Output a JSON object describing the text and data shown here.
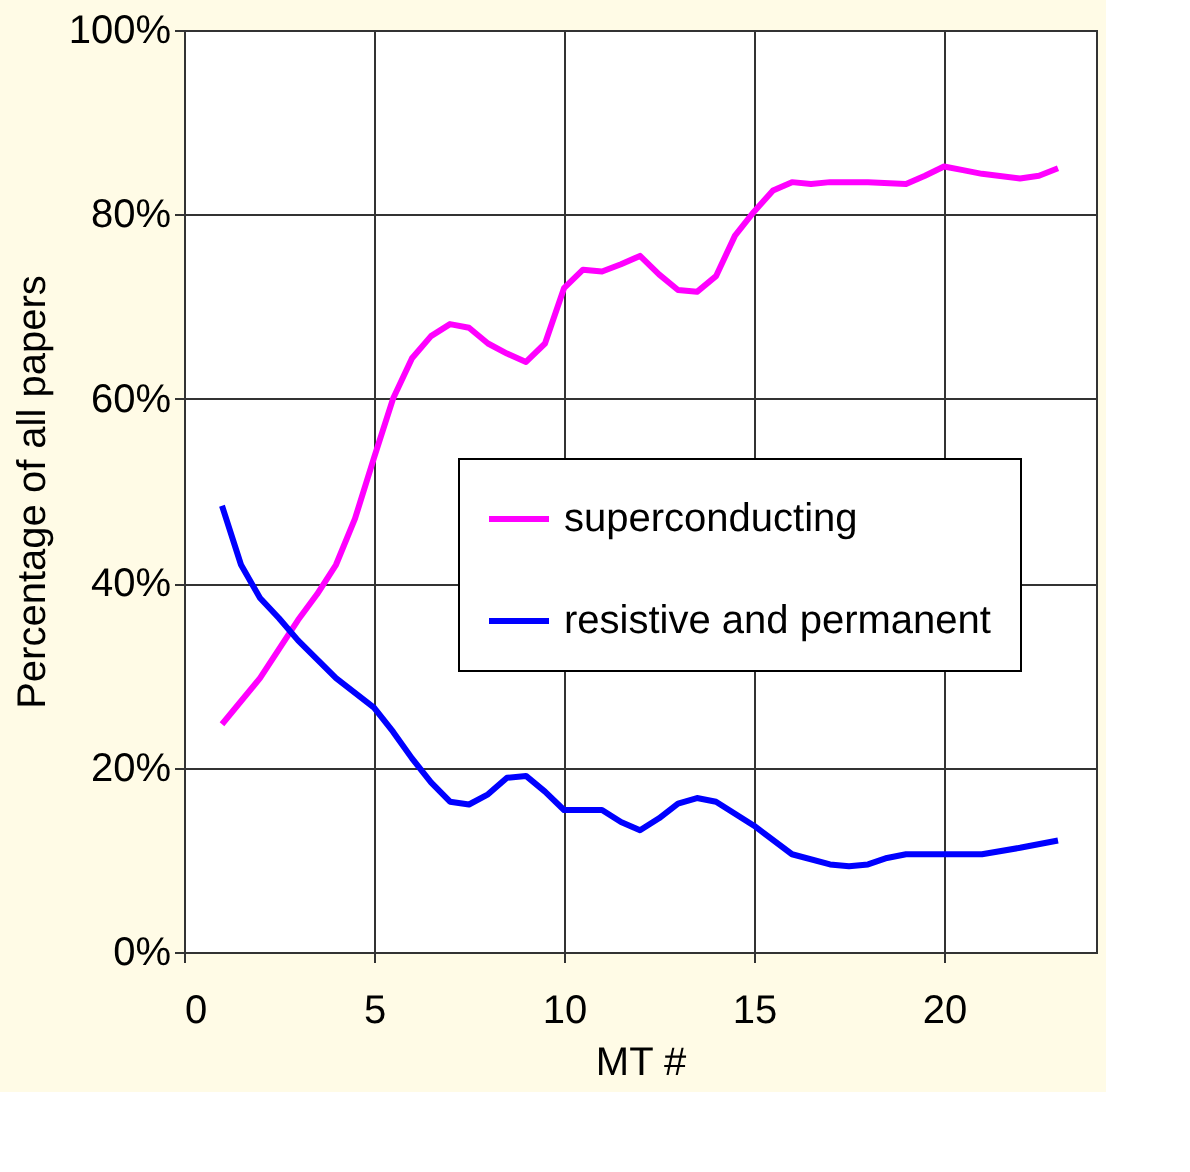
{
  "chart_data": {
    "type": "line",
    "xlabel": "MT #",
    "ylabel": "Percentage of all papers",
    "xlim": [
      0,
      24
    ],
    "xticks": [
      0,
      5,
      10,
      15,
      20
    ],
    "ylim": [
      0,
      100
    ],
    "yticks": [
      {
        "value": 0,
        "label": "0%"
      },
      {
        "value": 20,
        "label": "20%"
      },
      {
        "value": 40,
        "label": "40%"
      },
      {
        "value": 60,
        "label": "60%"
      },
      {
        "value": 80,
        "label": "80%"
      },
      {
        "value": 100,
        "label": "100%"
      }
    ],
    "grid": true,
    "legend": "right",
    "marker": "none",
    "line_style": "solid",
    "series": [
      {
        "name": "superconducting",
        "color": "#ff00ff",
        "x": [
          1,
          2,
          3,
          3.5,
          4,
          4.5,
          5,
          5.5,
          6,
          6.5,
          7,
          7.5,
          8,
          8.5,
          9,
          9.5,
          10,
          10.5,
          11,
          11.5,
          12,
          12.5,
          13,
          13.5,
          14,
          14.5,
          15,
          15.5,
          16,
          16.5,
          17,
          18,
          19,
          19.5,
          20,
          20.5,
          21,
          22,
          22.5,
          23
        ],
        "values": [
          24.7,
          29.7,
          36,
          38.8,
          42,
          47,
          53.6,
          60,
          64.4,
          66.8,
          68.1,
          67.7,
          66,
          64.9,
          64,
          66,
          72,
          74,
          73.8,
          74.6,
          75.5,
          73.5,
          71.8,
          71.6,
          73.3,
          77.7,
          80.3,
          82.6,
          83.5,
          83.3,
          83.5,
          83.5,
          83.3,
          84.2,
          85.2,
          84.8,
          84.4,
          83.9,
          84.2,
          85
        ]
      },
      {
        "name": "resistive and permanent",
        "color": "#0000ff",
        "x": [
          1,
          1.5,
          2,
          2.5,
          3,
          4,
          5,
          5.5,
          6,
          6.5,
          7,
          7.5,
          8,
          8.5,
          9,
          9.5,
          10,
          11,
          11.5,
          12,
          12.5,
          13,
          13.5,
          14,
          15,
          16,
          17,
          17.5,
          18,
          18.5,
          19,
          20,
          21,
          22,
          23
        ],
        "values": [
          48.4,
          42,
          38.4,
          36.2,
          33.8,
          29.7,
          26.5,
          23.9,
          21,
          18.4,
          16.3,
          16,
          17.1,
          18.9,
          19.1,
          17.4,
          15.4,
          15.4,
          14.1,
          13.2,
          14.5,
          16.1,
          16.7,
          16.3,
          13.7,
          10.6,
          9.5,
          9.3,
          9.5,
          10.2,
          10.6,
          10.6,
          10.6,
          11.3,
          12.1
        ]
      }
    ]
  }
}
